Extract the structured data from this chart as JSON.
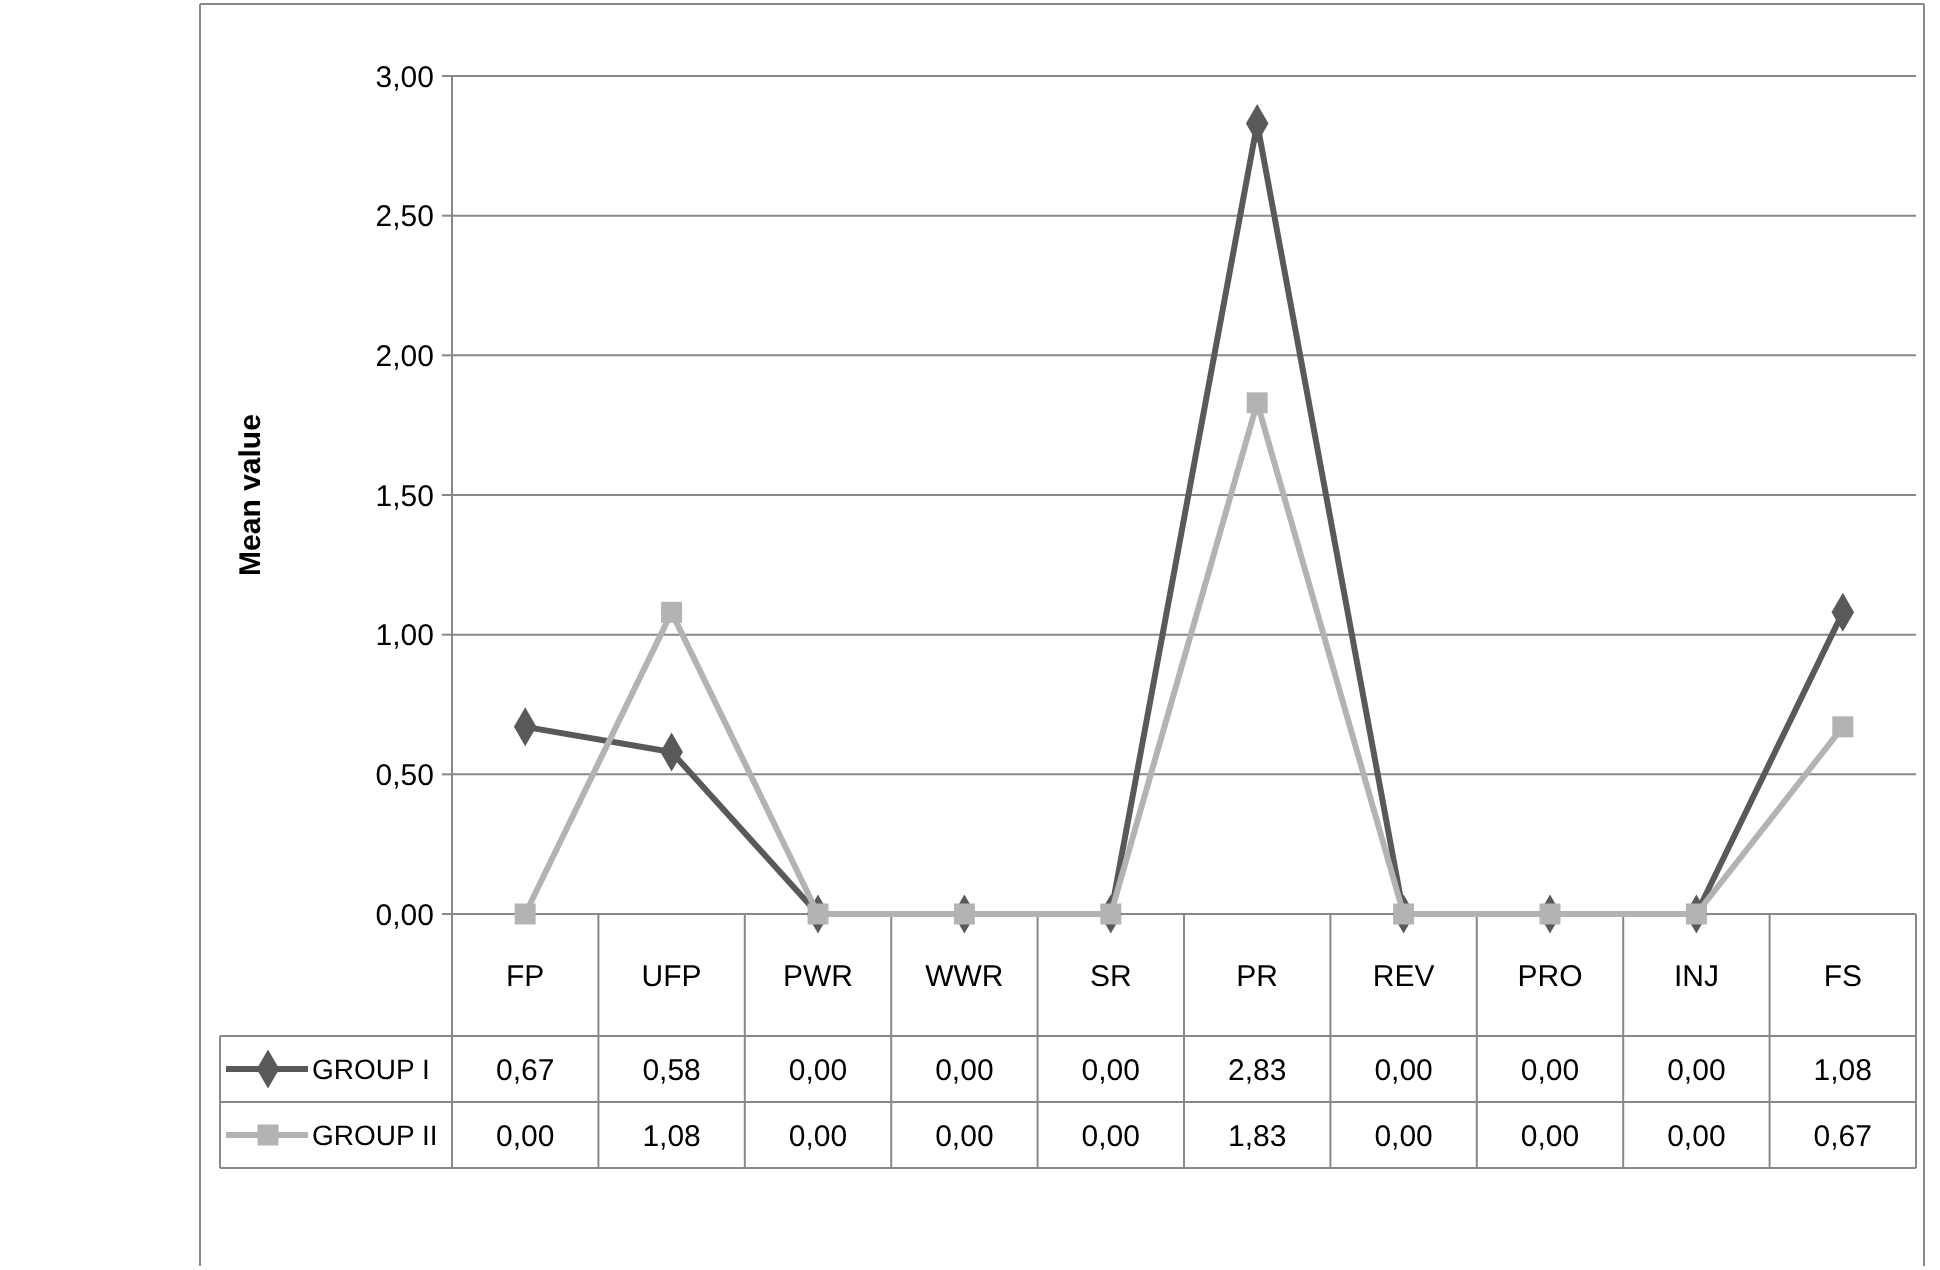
{
  "chart_data": {
    "type": "line",
    "ylabel": "Mean value",
    "categories": [
      "FP",
      "UFP",
      "PWR",
      "WWR",
      "SR",
      "PR",
      "REV",
      "PRO",
      "INJ",
      "FS"
    ],
    "series": [
      {
        "name": "GROUP I",
        "color": "#595959",
        "marker": "diamond",
        "values": [
          0.67,
          0.58,
          0,
          0,
          0,
          2.83,
          0,
          0,
          0,
          1.08
        ],
        "value_labels": [
          "0,67",
          "0,58",
          "0,00",
          "0,00",
          "0,00",
          "2,83",
          "0,00",
          "0,00",
          "0,00",
          "1,08"
        ]
      },
      {
        "name": "GROUP II",
        "color": "#b3b3b3",
        "marker": "square",
        "values": [
          0,
          1.08,
          0,
          0,
          0,
          1.83,
          0,
          0,
          0,
          0.67
        ],
        "value_labels": [
          "0,00",
          "1,08",
          "0,00",
          "0,00",
          "0,00",
          "1,83",
          "0,00",
          "0,00",
          "0,00",
          "0,67"
        ]
      }
    ],
    "ylim": [
      0,
      3
    ],
    "yticks": [
      {
        "value": 0,
        "label": "0,00"
      },
      {
        "value": 0.5,
        "label": "0,50"
      },
      {
        "value": 1,
        "label": "1,00"
      },
      {
        "value": 1.5,
        "label": "1,50"
      },
      {
        "value": 2,
        "label": "2,00"
      },
      {
        "value": 2.5,
        "label": "2,50"
      },
      {
        "value": 3,
        "label": "3,00"
      }
    ],
    "grid": "y",
    "legend": "bottom",
    "line_style": "solid"
  }
}
